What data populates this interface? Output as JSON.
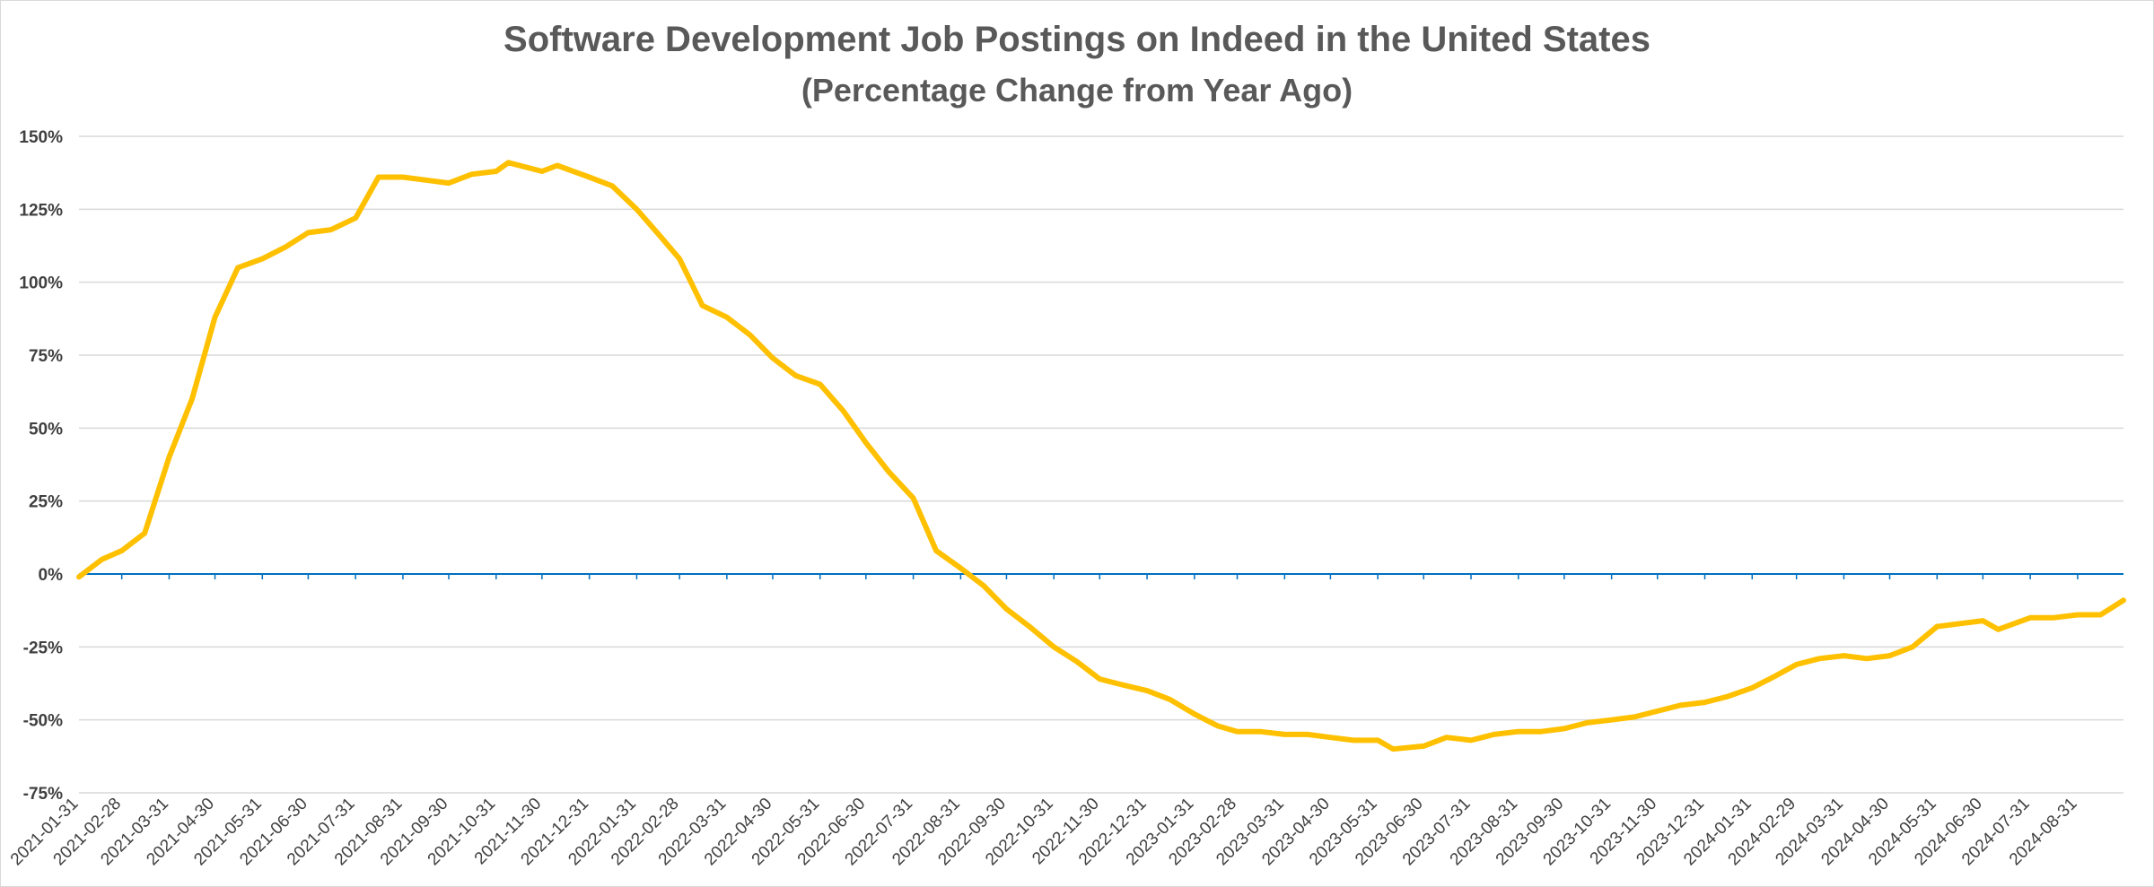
{
  "chart_data": {
    "type": "line",
    "title": "Software Development Job Postings on Indeed in the United States",
    "subtitle": "(Percentage Change from Year Ago)",
    "xlabel": "",
    "ylabel": "",
    "ylim": [
      -75,
      150
    ],
    "y_ticks": [
      "150%",
      "125%",
      "100%",
      "75%",
      "50%",
      "25%",
      "0%",
      "-25%",
      "-50%",
      "-75%"
    ],
    "y_tick_values": [
      150,
      125,
      100,
      75,
      50,
      25,
      0,
      -25,
      -50,
      -75
    ],
    "x_range": [
      "2021-01-31",
      "2024-09-30"
    ],
    "x_ticks": [
      "2021-01-31",
      "2021-02-28",
      "2021-03-31",
      "2021-04-30",
      "2021-05-31",
      "2021-06-30",
      "2021-07-31",
      "2021-08-31",
      "2021-09-30",
      "2021-10-31",
      "2021-11-30",
      "2021-12-31",
      "2022-01-31",
      "2022-02-28",
      "2022-03-31",
      "2022-04-30",
      "2022-05-31",
      "2022-06-30",
      "2022-07-31",
      "2022-08-31",
      "2022-09-30",
      "2022-10-31",
      "2022-11-30",
      "2022-12-31",
      "2023-01-31",
      "2023-02-28",
      "2023-03-31",
      "2023-04-30",
      "2023-05-31",
      "2023-06-30",
      "2023-07-31",
      "2023-08-31",
      "2023-09-30",
      "2023-10-31",
      "2023-11-30",
      "2023-12-31",
      "2024-01-31",
      "2024-02-29",
      "2024-03-31",
      "2024-04-30",
      "2024-05-31",
      "2024-06-30",
      "2024-07-31",
      "2024-08-31"
    ],
    "grid": true,
    "zero_line_color": "#0070c0",
    "series": [
      {
        "color": "#ffc000",
        "points": [
          [
            "2021-01-31",
            -1
          ],
          [
            "2021-02-15",
            5
          ],
          [
            "2021-02-28",
            8
          ],
          [
            "2021-03-15",
            14
          ],
          [
            "2021-03-31",
            40
          ],
          [
            "2021-04-15",
            60
          ],
          [
            "2021-04-30",
            88
          ],
          [
            "2021-05-15",
            105
          ],
          [
            "2021-05-31",
            108
          ],
          [
            "2021-06-15",
            112
          ],
          [
            "2021-06-30",
            117
          ],
          [
            "2021-07-15",
            118
          ],
          [
            "2021-07-31",
            122
          ],
          [
            "2021-08-15",
            136
          ],
          [
            "2021-08-31",
            136
          ],
          [
            "2021-09-15",
            135
          ],
          [
            "2021-09-30",
            134
          ],
          [
            "2021-10-15",
            137
          ],
          [
            "2021-10-31",
            138
          ],
          [
            "2021-11-08",
            141
          ],
          [
            "2021-11-30",
            138
          ],
          [
            "2021-12-10",
            140
          ],
          [
            "2021-12-31",
            136
          ],
          [
            "2022-01-15",
            133
          ],
          [
            "2022-01-31",
            125
          ],
          [
            "2022-02-15",
            116
          ],
          [
            "2022-02-28",
            108
          ],
          [
            "2022-03-15",
            92
          ],
          [
            "2022-03-31",
            88
          ],
          [
            "2022-04-15",
            82
          ],
          [
            "2022-04-30",
            74
          ],
          [
            "2022-05-15",
            68
          ],
          [
            "2022-05-31",
            65
          ],
          [
            "2022-06-15",
            56
          ],
          [
            "2022-06-30",
            45
          ],
          [
            "2022-07-15",
            35
          ],
          [
            "2022-07-31",
            26
          ],
          [
            "2022-08-15",
            8
          ],
          [
            "2022-08-31",
            2
          ],
          [
            "2022-09-15",
            -4
          ],
          [
            "2022-09-30",
            -12
          ],
          [
            "2022-10-15",
            -18
          ],
          [
            "2022-10-31",
            -25
          ],
          [
            "2022-11-15",
            -30
          ],
          [
            "2022-11-30",
            -36
          ],
          [
            "2022-12-15",
            -38
          ],
          [
            "2022-12-31",
            -40
          ],
          [
            "2023-01-15",
            -43
          ],
          [
            "2023-01-31",
            -48
          ],
          [
            "2023-02-15",
            -52
          ],
          [
            "2023-02-28",
            -54
          ],
          [
            "2023-03-15",
            -54
          ],
          [
            "2023-03-31",
            -55
          ],
          [
            "2023-04-15",
            -55
          ],
          [
            "2023-04-30",
            -56
          ],
          [
            "2023-05-15",
            -57
          ],
          [
            "2023-05-31",
            -57
          ],
          [
            "2023-06-10",
            -60
          ],
          [
            "2023-06-30",
            -59
          ],
          [
            "2023-07-15",
            -56
          ],
          [
            "2023-07-31",
            -57
          ],
          [
            "2023-08-15",
            -55
          ],
          [
            "2023-08-31",
            -54
          ],
          [
            "2023-09-15",
            -54
          ],
          [
            "2023-09-30",
            -53
          ],
          [
            "2023-10-15",
            -51
          ],
          [
            "2023-10-31",
            -50
          ],
          [
            "2023-11-15",
            -49
          ],
          [
            "2023-11-30",
            -47
          ],
          [
            "2023-12-15",
            -45
          ],
          [
            "2023-12-31",
            -44
          ],
          [
            "2024-01-15",
            -42
          ],
          [
            "2024-01-31",
            -39
          ],
          [
            "2024-02-15",
            -35
          ],
          [
            "2024-02-29",
            -31
          ],
          [
            "2024-03-15",
            -29
          ],
          [
            "2024-03-31",
            -28
          ],
          [
            "2024-04-15",
            -29
          ],
          [
            "2024-04-30",
            -28
          ],
          [
            "2024-05-15",
            -25
          ],
          [
            "2024-05-31",
            -18
          ],
          [
            "2024-06-15",
            -17
          ],
          [
            "2024-06-30",
            -16
          ],
          [
            "2024-07-10",
            -19
          ],
          [
            "2024-07-31",
            -15
          ],
          [
            "2024-08-15",
            -15
          ],
          [
            "2024-08-31",
            -14
          ],
          [
            "2024-09-15",
            -14
          ],
          [
            "2024-09-30",
            -9
          ]
        ]
      }
    ]
  }
}
